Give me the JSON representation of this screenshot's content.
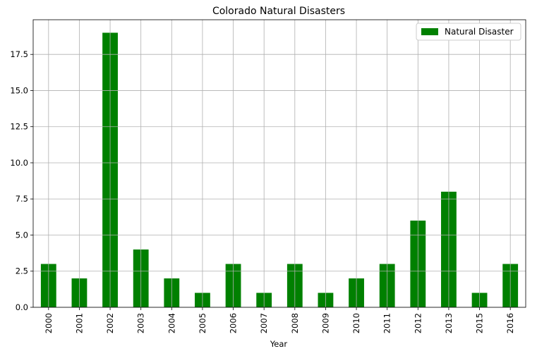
{
  "chart_data": {
    "type": "bar",
    "title": "Colorado Natural Disasters",
    "xlabel": "Year",
    "ylabel": "",
    "categories": [
      "2000",
      "2001",
      "2002",
      "2003",
      "2004",
      "2005",
      "2006",
      "2007",
      "2008",
      "2009",
      "2010",
      "2011",
      "2012",
      "2013",
      "2015",
      "2016"
    ],
    "series": [
      {
        "name": "Natural Disaster",
        "values": [
          3,
          2,
          19,
          4,
          2,
          1,
          3,
          1,
          3,
          1,
          2,
          3,
          6,
          8,
          1,
          3
        ],
        "color": "#008000"
      }
    ],
    "ylim": [
      0,
      19.9
    ],
    "yticks": [
      "0.0",
      "2.5",
      "5.0",
      "7.5",
      "10.0",
      "12.5",
      "15.0",
      "17.5"
    ],
    "ytick_values": [
      0,
      2.5,
      5,
      7.5,
      10,
      12.5,
      15,
      17.5
    ],
    "grid": true,
    "legend_position": "top-right"
  }
}
